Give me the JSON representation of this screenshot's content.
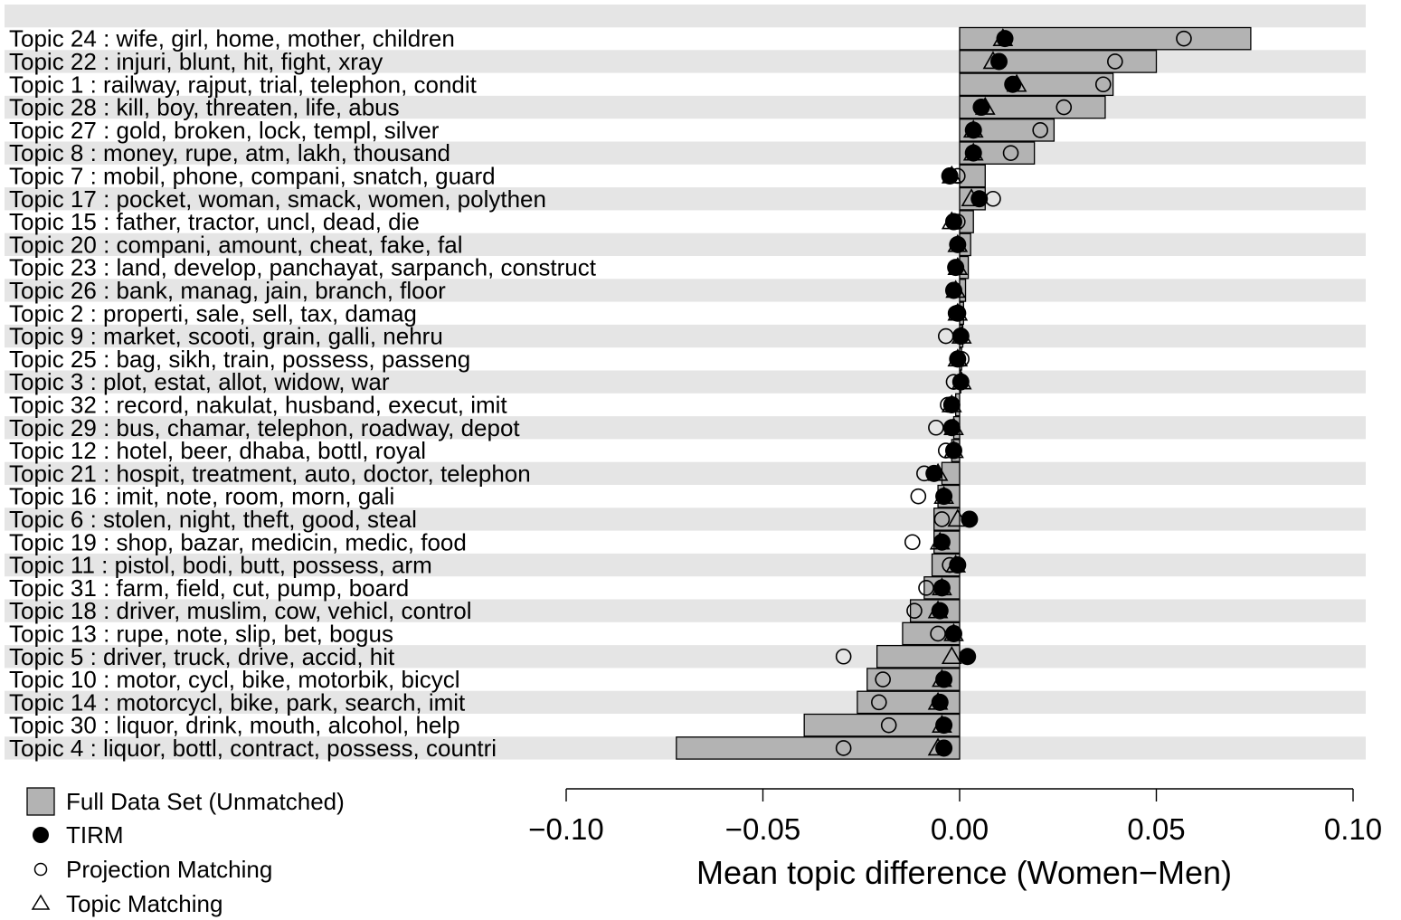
{
  "chart_data": {
    "type": "bar",
    "orientation": "horizontal",
    "xlabel": "Mean topic difference (Women−Men)",
    "xlim": [
      -0.1,
      0.1
    ],
    "xticks": [
      -0.1,
      -0.05,
      0.0,
      0.05,
      0.1
    ],
    "xtick_labels": [
      "−0.10",
      "−0.05",
      "0.00",
      "0.05",
      "0.10"
    ],
    "legend_position": "bottom-left",
    "legend": [
      {
        "key": "full",
        "label": "Full Data Set (Unmatched)",
        "marker": "gray-bar"
      },
      {
        "key": "tirm",
        "label": "TIRM",
        "marker": "filled-circle"
      },
      {
        "key": "projection",
        "label": "Projection Matching",
        "marker": "open-circle"
      },
      {
        "key": "topic",
        "label": "Topic Matching",
        "marker": "open-triangle"
      }
    ],
    "colors": {
      "bar": "#b3b3b3",
      "stripe": "#e5e5e5",
      "point": "#000000"
    },
    "categories": [
      "Topic 24 :  wife, girl, home, mother, children",
      "Topic 22 :  injuri, blunt, hit, fight, xray",
      "Topic 1 :  railway, rajput, trial, telephon, condit",
      "Topic 28 :  kill, boy, threaten, life, abus",
      "Topic 27 :  gold, broken, lock, templ, silver",
      "Topic 8 :  money, rupe, atm, lakh, thousand",
      "Topic 7 :  mobil, phone, compani, snatch, guard",
      "Topic 17 :  pocket, woman, smack, women, polythen",
      "Topic 15 :  father, tractor, uncl, dead, die",
      "Topic 20 :  compani, amount, cheat, fake, fal",
      "Topic 23 :  land, develop, panchayat, sarpanch, construct",
      "Topic 26 :  bank, manag, jain, branch, floor",
      "Topic 2 :  properti, sale, sell, tax, damag",
      "Topic 9 :  market, scooti, grain, galli, nehru",
      "Topic 25 :  bag, sikh, train, possess, passeng",
      "Topic 3 :  plot, estat, allot, widow, war",
      "Topic 32 :  record, nakulat, husband, execut, imit",
      "Topic 29 :  bus, chamar, telephon, roadway, depot",
      "Topic 12 :  hotel, beer, dhaba, bottl, royal",
      "Topic 21 :  hospit, treatment, auto, doctor, telephon",
      "Topic 16 :  imit, note, room, morn, gali",
      "Topic 6 :  stolen, night, theft, good, steal",
      "Topic 19 :  shop, bazar, medicin, medic, food",
      "Topic 11 :  pistol, bodi, butt, possess, arm",
      "Topic 31 :  farm, field, cut, pump, board",
      "Topic 18 :  driver, muslim, cow, vehicl, control",
      "Topic 13 :  rupe, note, slip, bet, bogus",
      "Topic 5 :  driver, truck, drive, accid, hit",
      "Topic 10 :  motor, cycl, bike, motorbik, bicycl",
      "Topic 14 :  motorcycl, bike, park, search, imit",
      "Topic 30 :  liquor, drink, mouth, alcohol, help",
      "Topic 4 :  liquor, bottl, contract, possess, countri"
    ],
    "series": [
      {
        "key": "full",
        "name": "Full Data Set (Unmatched)",
        "values": [
          0.074,
          0.05,
          0.039,
          0.037,
          0.024,
          0.019,
          0.0065,
          0.0065,
          0.0035,
          0.0028,
          0.0022,
          0.0015,
          0.001,
          0.0008,
          0.0005,
          0.0003,
          -0.001,
          -0.0015,
          -0.002,
          -0.0045,
          -0.0055,
          -0.0065,
          -0.0065,
          -0.007,
          -0.009,
          -0.0125,
          -0.0145,
          -0.021,
          -0.0235,
          -0.026,
          -0.0395,
          -0.072
        ]
      },
      {
        "key": "tirm",
        "name": "TIRM",
        "values": [
          0.0115,
          0.01,
          0.0135,
          0.0055,
          0.0035,
          0.0035,
          -0.0025,
          0.005,
          -0.0015,
          -0.0005,
          -0.001,
          -0.0015,
          -0.0005,
          0.0003,
          -0.0005,
          0.0003,
          -0.002,
          -0.002,
          -0.0015,
          -0.0065,
          -0.004,
          0.0025,
          -0.0045,
          -0.0005,
          -0.0045,
          -0.005,
          -0.0015,
          0.002,
          -0.004,
          -0.005,
          -0.004,
          -0.004
        ]
      },
      {
        "key": "projection",
        "name": "Projection Matching",
        "values": [
          0.057,
          0.0395,
          0.0365,
          0.0265,
          0.0205,
          0.013,
          -0.0005,
          0.0085,
          -0.0005,
          -0.0005,
          -0.001,
          -0.0015,
          -0.001,
          -0.0035,
          0.0005,
          -0.0015,
          -0.003,
          -0.006,
          -0.0035,
          -0.009,
          -0.0105,
          -0.0045,
          -0.012,
          -0.0025,
          -0.0085,
          -0.0115,
          -0.0055,
          -0.0295,
          -0.0195,
          -0.0205,
          -0.018,
          -0.0295
        ]
      },
      {
        "key": "topic",
        "name": "Topic Matching",
        "values": [
          0.011,
          0.0085,
          0.0145,
          0.0065,
          0.0035,
          0.0035,
          -0.002,
          0.003,
          -0.002,
          -0.0005,
          -0.0005,
          -0.001,
          -0.0005,
          0.0005,
          -0.0005,
          0.0005,
          -0.002,
          -0.0015,
          -0.0015,
          -0.0055,
          -0.004,
          -0.0005,
          -0.005,
          -0.001,
          -0.0045,
          -0.0055,
          -0.0015,
          -0.002,
          -0.0045,
          -0.0055,
          -0.0045,
          -0.0055
        ]
      }
    ]
  }
}
